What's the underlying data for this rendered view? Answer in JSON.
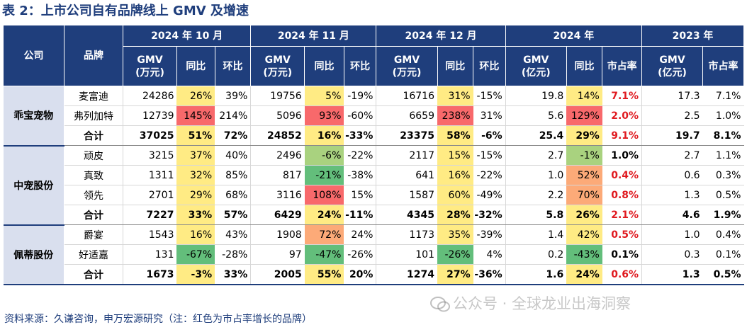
{
  "title": "表 2：上市公司自有品牌线上 GMV 及增速",
  "header": {
    "company": "公司",
    "brand": "品牌",
    "groups": [
      "2024 年 10 月",
      "2024 年 11 月",
      "2024 年 12 月",
      "2024 年",
      "2023 年"
    ],
    "gmv_wan_l1": "GMV",
    "gmv_wan_l2": "(万元)",
    "gmv_yi_l1": "GMV",
    "gmv_yi_l2": "(亿元)",
    "yoy": "同比",
    "mom": "环比",
    "share": "市占率"
  },
  "companies": [
    {
      "name": "乖宝宠物",
      "rows": [
        {
          "brand": "麦富迪",
          "v": [
            "24286",
            "26%",
            "39%",
            "19756",
            "5%",
            "-19%",
            "16716",
            "31%",
            "-15%",
            "19.8",
            "14%",
            "7.1%",
            "17.3",
            "7.1%"
          ]
        },
        {
          "brand": "弗列加特",
          "v": [
            "12739",
            "145%",
            "214%",
            "5096",
            "93%",
            "-60%",
            "6659",
            "238%",
            "31%",
            "5.6",
            "129%",
            "2.0%",
            "2.5",
            "1.0%"
          ]
        },
        {
          "brand": "合计",
          "total": true,
          "v": [
            "37025",
            "51%",
            "72%",
            "24852",
            "16%",
            "-33%",
            "23375",
            "58%",
            "-6%",
            "25.4",
            "29%",
            "9.1%",
            "19.7",
            "8.1%"
          ]
        }
      ]
    },
    {
      "name": "中宠股份",
      "rows": [
        {
          "brand": "顽皮",
          "v": [
            "3215",
            "37%",
            "40%",
            "2496",
            "-6%",
            "-22%",
            "2117",
            "15%",
            "-15%",
            "2.7",
            "-1%",
            "1.0%",
            "2.7",
            "1.1%"
          ]
        },
        {
          "brand": "真致",
          "v": [
            "1311",
            "32%",
            "85%",
            "817",
            "-21%",
            "-38%",
            "641",
            "16%",
            "-22%",
            "1.0",
            "52%",
            "0.4%",
            "0.6",
            "0.3%"
          ]
        },
        {
          "brand": "领先",
          "v": [
            "2701",
            "29%",
            "68%",
            "3116",
            "108%",
            "15%",
            "1587",
            "60%",
            "-49%",
            "2.2",
            "70%",
            "0.8%",
            "1.3",
            "0.5%"
          ]
        },
        {
          "brand": "合计",
          "total": true,
          "v": [
            "7227",
            "33%",
            "57%",
            "6429",
            "24%",
            "-11%",
            "4345",
            "28%",
            "-32%",
            "5.8",
            "26%",
            "2.1%",
            "4.6",
            "1.9%"
          ]
        }
      ]
    },
    {
      "name": "佩蒂股份",
      "rows": [
        {
          "brand": "爵宴",
          "v": [
            "1543",
            "16%",
            "43%",
            "1908",
            "72%",
            "24%",
            "1173",
            "35%",
            "-39%",
            "1.4",
            "42%",
            "0.5%",
            "1.0",
            "0.4%"
          ]
        },
        {
          "brand": "好适嘉",
          "v": [
            "131",
            "-67%",
            "-28%",
            "97",
            "-47%",
            "-26%",
            "101",
            "-26%",
            "4%",
            "0.2",
            "-43%",
            "0.1%",
            "0.3",
            "0.1%"
          ]
        },
        {
          "brand": "合计",
          "total": true,
          "v": [
            "1673",
            "-3%",
            "33%",
            "2005",
            "55%",
            "20%",
            "1274",
            "27%",
            "-36%",
            "1.6",
            "24%",
            "0.6%",
            "1.3",
            "0.5%"
          ]
        }
      ]
    }
  ],
  "red_share_rows": [
    "麦富迪",
    "弗列加特",
    "乖宝宠物合计",
    "真致",
    "领先",
    "中宠股份合计",
    "爵宴",
    "佩蒂股份合计"
  ],
  "heat_colors": {
    "green": "#63be7b",
    "light_green": "#a9d27f",
    "yellow": "#ffeb84",
    "orange": "#fcaa78",
    "red": "#f8696b",
    "red_text": "#e0191f",
    "header_blue": "#1f3e7c",
    "company_bg": "#d9dfee"
  },
  "footer": "资料来源：久谦咨询，申万宏源研究（注：红色为市占率增长的品牌）",
  "watermark": "公众号 · 全球龙业出海洞察"
}
